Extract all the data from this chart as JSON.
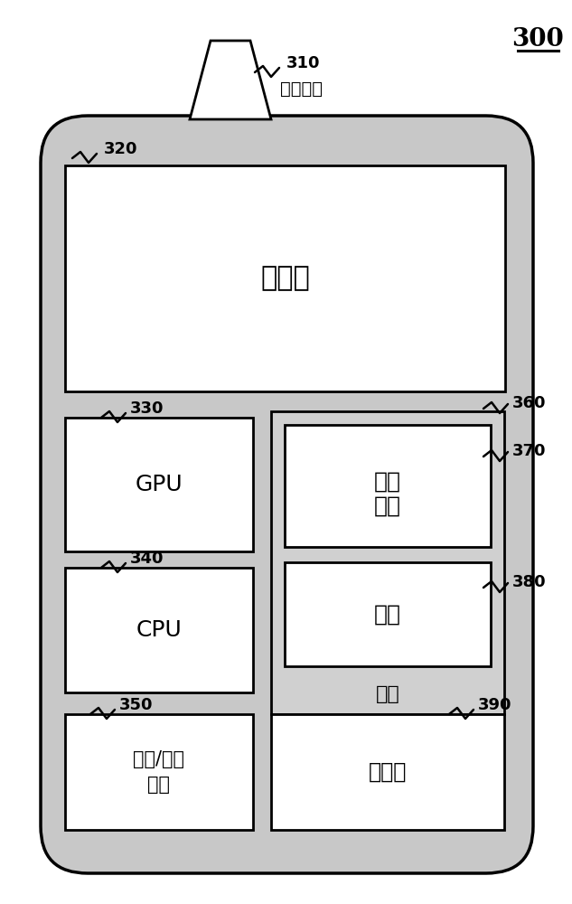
{
  "bg_color": "#ffffff",
  "device_facecolor": "#c8c8c8",
  "box_color": "#ffffff",
  "line_color": "#000000",
  "title": "300",
  "labels": {
    "310": "310",
    "320": "320",
    "330": "330",
    "340": "340",
    "350": "350",
    "360": "360",
    "370": "370",
    "380": "380",
    "390": "390"
  },
  "component_labels": {
    "antenna": "通信平台",
    "display": "显示器",
    "gpu": "GPU",
    "cpu": "CPU",
    "io_line1": "输入/输出",
    "io_line2": "界面",
    "memory_outer": "内存",
    "os_line1": "操作",
    "os_line2": "系统",
    "app": "应用",
    "storage": "存储器"
  }
}
